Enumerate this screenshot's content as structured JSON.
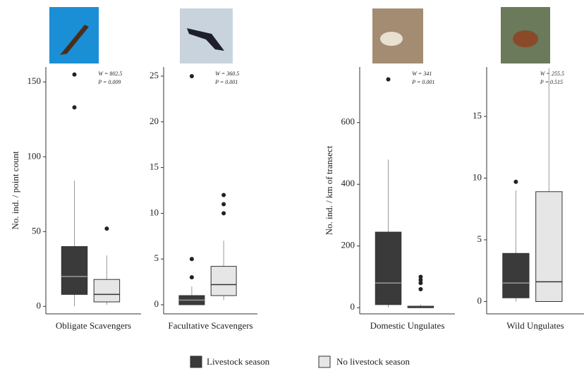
{
  "chart_data": [
    {
      "type": "box",
      "category": "Obligate Scavengers",
      "y_label": "No. ind. / point count",
      "annotations": [
        "W = 802.5",
        "P = 0.009"
      ],
      "ylim": [
        -5,
        160
      ],
      "yticks": [
        0,
        50,
        100,
        150
      ],
      "series": [
        {
          "name": "Livestock season",
          "color": "#3a3a3a",
          "min": 0,
          "q1": 8,
          "median": 20,
          "q3": 40,
          "max": 84,
          "outliers": [
            133,
            155
          ]
        },
        {
          "name": "No livestock season",
          "color": "#e6e6e6",
          "min": 1,
          "q1": 3,
          "median": 8,
          "q3": 18,
          "max": 34,
          "outliers": [
            52
          ]
        }
      ]
    },
    {
      "type": "box",
      "category": "Facultative Scavengers",
      "annotations": [
        "W = 360.5",
        "P = 0.001"
      ],
      "ylim": [
        -1,
        26
      ],
      "yticks": [
        0,
        5,
        10,
        15,
        20,
        25
      ],
      "series": [
        {
          "name": "Livestock season",
          "color": "#3a3a3a",
          "min": 0,
          "q1": 0,
          "median": 0.5,
          "q3": 1,
          "max": 2,
          "outliers": [
            3,
            5,
            25
          ]
        },
        {
          "name": "No livestock season",
          "color": "#e6e6e6",
          "min": 0.5,
          "q1": 1,
          "median": 2.2,
          "q3": 4.2,
          "max": 7,
          "outliers": [
            10,
            11,
            12
          ]
        }
      ]
    },
    {
      "type": "box",
      "category": "Domestic Ungulates",
      "y_label": "No. ind. / km of transect",
      "annotations": [
        "W = 341",
        "P = 0.001"
      ],
      "ylim": [
        -20,
        780
      ],
      "yticks": [
        0,
        200,
        400,
        600
      ],
      "series": [
        {
          "name": "Livestock season",
          "color": "#3a3a3a",
          "min": 0,
          "q1": 10,
          "median": 80,
          "q3": 245,
          "max": 480,
          "outliers": [
            740
          ]
        },
        {
          "name": "No livestock season",
          "color": "#e6e6e6",
          "min": 0,
          "q1": 0,
          "median": 2,
          "q3": 5,
          "max": 10,
          "outliers": [
            60,
            80,
            90,
            100
          ]
        }
      ]
    },
    {
      "type": "box",
      "category": "Wild Ungulates",
      "annotations": [
        "W = 255.5",
        "P = 0.515"
      ],
      "ylim": [
        -1,
        19
      ],
      "yticks": [
        0,
        5,
        10,
        15
      ],
      "series": [
        {
          "name": "Livestock season",
          "color": "#3a3a3a",
          "min": 0,
          "q1": 0.3,
          "median": 1.5,
          "q3": 3.9,
          "max": 9,
          "outliers": [
            9.7
          ]
        },
        {
          "name": "No livestock season",
          "color": "#e6e6e6",
          "min": 0,
          "q1": 0,
          "median": 1.6,
          "q3": 8.9,
          "max": 18.9,
          "outliers": []
        }
      ]
    }
  ]
}
